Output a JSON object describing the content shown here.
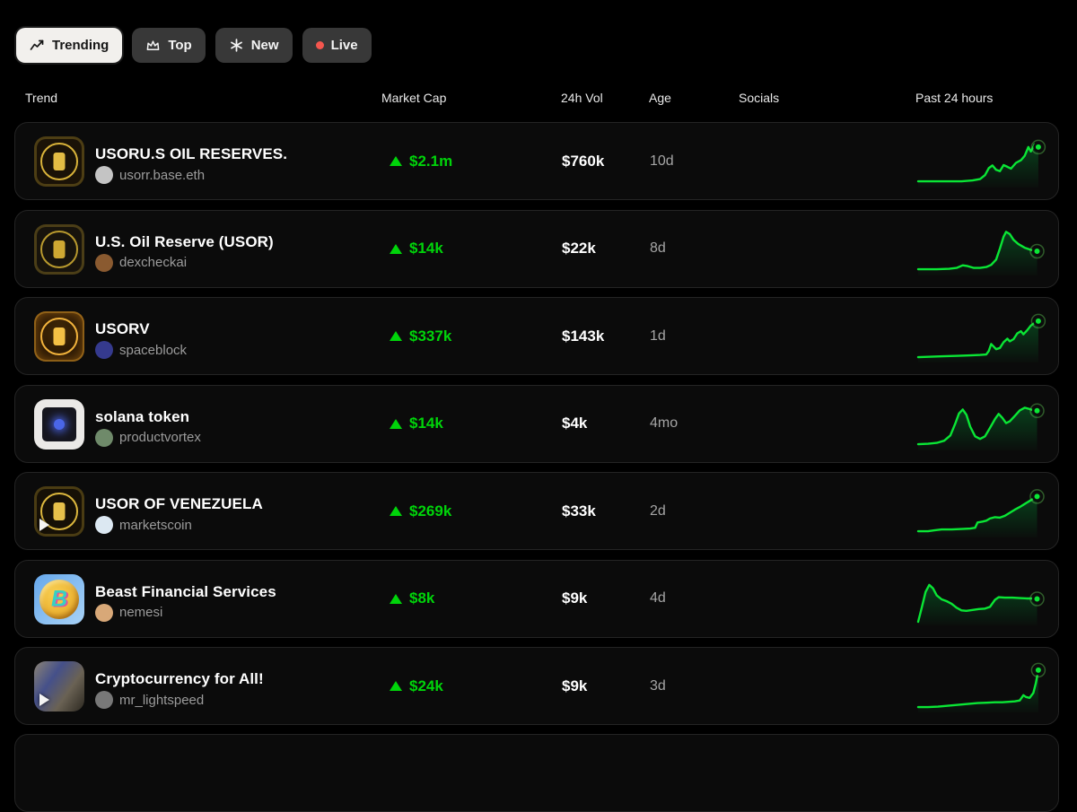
{
  "tabs": [
    {
      "label": "Trending",
      "active": true
    },
    {
      "label": "Top",
      "active": false
    },
    {
      "label": "New",
      "active": false
    },
    {
      "label": "Live",
      "active": false
    }
  ],
  "table": {
    "headers": [
      "Trend",
      "Market Cap",
      "24h Vol",
      "Age",
      "Socials",
      "Past 24 hours"
    ]
  },
  "colors": {
    "accent_green": "#00d40a",
    "spark_line": "#0ae635",
    "spark_fill_top": "rgba(0,200,70,0.28)",
    "spark_fill_bottom": "rgba(0,200,70,0.02)",
    "live_dot": "#f4564e",
    "card_bg": "#0b0b0b",
    "card_border": "#242424"
  },
  "rows": [
    {
      "name": "USORU.S OIL RESERVES.",
      "creator": "usorr.base.eth",
      "creator_color": "#c4c4c4",
      "market_cap": "$2.1m",
      "market_cap_direction": "up",
      "vol_24h": "$760k",
      "age": "10d",
      "socials": "",
      "has_video": false,
      "avatar": {
        "style": "emblem",
        "bg": "#1a1207",
        "ring": "#d9b33a",
        "core": "#e3bc44"
      },
      "spark": [
        [
          0,
          8
        ],
        [
          20,
          8
        ],
        [
          35,
          8
        ],
        [
          44,
          10
        ],
        [
          50,
          13
        ],
        [
          54,
          22
        ],
        [
          57,
          38
        ],
        [
          60,
          44
        ],
        [
          63,
          34
        ],
        [
          66,
          31
        ],
        [
          69,
          45
        ],
        [
          72,
          41
        ],
        [
          75,
          37
        ],
        [
          79,
          50
        ],
        [
          83,
          56
        ],
        [
          86,
          66
        ],
        [
          89,
          86
        ],
        [
          91,
          76
        ],
        [
          94,
          92
        ],
        [
          97,
          86
        ]
      ]
    },
    {
      "name": "U.S. Oil Reserve (USOR)",
      "creator": "dexcheckai",
      "creator_color": "#8a5a30",
      "market_cap": "$14k",
      "market_cap_direction": "up",
      "vol_24h": "$22k",
      "age": "8d",
      "socials": "",
      "has_video": false,
      "avatar": {
        "style": "emblem",
        "bg": "#17130c",
        "ring": "#b99a2e",
        "core": "#cfa832"
      },
      "spark": [
        [
          0,
          8
        ],
        [
          15,
          8
        ],
        [
          25,
          9
        ],
        [
          31,
          11
        ],
        [
          36,
          17
        ],
        [
          40,
          15
        ],
        [
          45,
          11
        ],
        [
          50,
          11
        ],
        [
          55,
          13
        ],
        [
          59,
          18
        ],
        [
          63,
          30
        ],
        [
          66,
          55
        ],
        [
          69,
          82
        ],
        [
          71,
          93
        ],
        [
          74,
          88
        ],
        [
          77,
          75
        ],
        [
          81,
          65
        ],
        [
          86,
          57
        ],
        [
          91,
          52
        ],
        [
          96,
          49
        ]
      ]
    },
    {
      "name": "USORV",
      "creator": "spaceblock",
      "creator_color": "#353a8e",
      "market_cap": "$337k",
      "market_cap_direction": "up",
      "vol_24h": "$143k",
      "age": "1d",
      "socials": "",
      "has_video": false,
      "avatar": {
        "style": "emblem-glow",
        "bg": "radial-gradient(circle at 50% 45%, #4a2e08 0%, #241404 55%, #140b02 100%)",
        "ring": "#f2b33c",
        "core": "#f4c045"
      },
      "spark": [
        [
          0,
          6
        ],
        [
          10,
          7
        ],
        [
          20,
          8
        ],
        [
          32,
          9
        ],
        [
          42,
          10
        ],
        [
          50,
          11
        ],
        [
          55,
          12
        ],
        [
          57,
          20
        ],
        [
          59,
          36
        ],
        [
          61,
          30
        ],
        [
          63,
          24
        ],
        [
          66,
          27
        ],
        [
          69,
          40
        ],
        [
          72,
          48
        ],
        [
          74,
          42
        ],
        [
          77,
          47
        ],
        [
          80,
          60
        ],
        [
          83,
          65
        ],
        [
          85,
          58
        ],
        [
          88,
          67
        ],
        [
          91,
          78
        ],
        [
          94,
          84
        ],
        [
          97,
          88
        ]
      ]
    },
    {
      "name": "solana token",
      "creator": "productvortex",
      "creator_color": "#6f8a6a",
      "market_cap": "$14k",
      "market_cap_direction": "up",
      "vol_24h": "$4k",
      "age": "4mo",
      "socials": "",
      "has_video": false,
      "avatar": {
        "style": "square",
        "bg": "#ebe9e7",
        "ring": "#16161e",
        "core": "#4a66e8"
      },
      "spark": [
        [
          0,
          8
        ],
        [
          8,
          9
        ],
        [
          15,
          11
        ],
        [
          21,
          16
        ],
        [
          26,
          28
        ],
        [
          30,
          55
        ],
        [
          33,
          78
        ],
        [
          36,
          87
        ],
        [
          39,
          75
        ],
        [
          42,
          48
        ],
        [
          46,
          26
        ],
        [
          50,
          20
        ],
        [
          54,
          26
        ],
        [
          58,
          45
        ],
        [
          62,
          65
        ],
        [
          65,
          77
        ],
        [
          68,
          68
        ],
        [
          71,
          56
        ],
        [
          74,
          60
        ],
        [
          78,
          72
        ],
        [
          82,
          85
        ],
        [
          86,
          91
        ],
        [
          90,
          88
        ],
        [
          93,
          85
        ],
        [
          96,
          84
        ]
      ]
    },
    {
      "name": "USOR OF VENEZUELA",
      "creator": "marketscoin",
      "creator_color": "#dce8f2",
      "market_cap": "$269k",
      "market_cap_direction": "up",
      "vol_24h": "$33k",
      "age": "2d",
      "socials": "",
      "has_video": true,
      "avatar": {
        "style": "emblem",
        "bg": "#161006",
        "ring": "#ddb83e",
        "core": "#e6c04a"
      },
      "spark": [
        [
          0,
          8
        ],
        [
          8,
          8
        ],
        [
          13,
          10
        ],
        [
          19,
          12
        ],
        [
          27,
          12
        ],
        [
          35,
          13
        ],
        [
          42,
          14
        ],
        [
          46,
          16
        ],
        [
          48,
          28
        ],
        [
          52,
          30
        ],
        [
          55,
          32
        ],
        [
          58,
          37
        ],
        [
          62,
          40
        ],
        [
          66,
          39
        ],
        [
          70,
          43
        ],
        [
          74,
          50
        ],
        [
          78,
          57
        ],
        [
          82,
          63
        ],
        [
          86,
          70
        ],
        [
          90,
          77
        ],
        [
          93,
          82
        ],
        [
          96,
          87
        ]
      ]
    },
    {
      "name": "Beast Financial Services",
      "creator": "nemesi",
      "creator_color": "#d8a878",
      "market_cap": "$8k",
      "market_cap_direction": "up",
      "vol_24h": "$9k",
      "age": "4d",
      "socials": "",
      "has_video": false,
      "avatar": {
        "style": "coin",
        "bg": "linear-gradient(135deg,#66a8ec 0%,#a8d2f6 100%)",
        "ring": "radial-gradient(circle at 40% 35%, #f8cf52 0%, #edb535 55%, #c88a1c 100%)",
        "core": "#38cfc4",
        "glyph": "B"
      },
      "spark": [
        [
          0,
          2
        ],
        [
          3,
          35
        ],
        [
          6,
          70
        ],
        [
          9,
          86
        ],
        [
          12,
          78
        ],
        [
          15,
          62
        ],
        [
          19,
          53
        ],
        [
          23,
          49
        ],
        [
          27,
          43
        ],
        [
          31,
          34
        ],
        [
          35,
          28
        ],
        [
          39,
          27
        ],
        [
          44,
          29
        ],
        [
          49,
          31
        ],
        [
          54,
          32
        ],
        [
          58,
          36
        ],
        [
          62,
          52
        ],
        [
          65,
          58
        ],
        [
          70,
          57
        ],
        [
          76,
          57
        ],
        [
          82,
          56
        ],
        [
          88,
          55
        ],
        [
          93,
          55
        ],
        [
          96,
          54
        ]
      ]
    },
    {
      "name": "Cryptocurrency for All!",
      "creator": "mr_lightspeed",
      "creator_color": "#787878",
      "market_cap": "$24k",
      "market_cap_direction": "up",
      "vol_24h": "$9k",
      "age": "3d",
      "socials": "",
      "has_video": true,
      "avatar": {
        "style": "photo",
        "bg": "linear-gradient(125deg,#8c8474 0%,#45508a 35%,#6a6254 65%,#2c2820 100%)"
      },
      "spark": [
        [
          0,
          6
        ],
        [
          8,
          6
        ],
        [
          16,
          7
        ],
        [
          24,
          9
        ],
        [
          32,
          11
        ],
        [
          40,
          13
        ],
        [
          48,
          15
        ],
        [
          55,
          16
        ],
        [
          62,
          17
        ],
        [
          68,
          17
        ],
        [
          73,
          18
        ],
        [
          78,
          19
        ],
        [
          82,
          21
        ],
        [
          85,
          33
        ],
        [
          87,
          29
        ],
        [
          90,
          27
        ],
        [
          93,
          38
        ],
        [
          95,
          60
        ],
        [
          97,
          90
        ]
      ]
    }
  ]
}
